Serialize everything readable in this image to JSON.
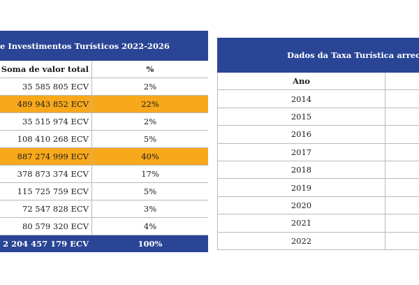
{
  "left_table": {
    "title": "e Investimentos Turísticos 2022-2026",
    "col_value": "Soma de valor total",
    "col_pct": "%",
    "rows": [
      {
        "value": "35 585 805 ECV",
        "pct": "2%"
      },
      {
        "value": "489 943 852 ECV",
        "pct": "22%"
      },
      {
        "value": "35 515 974 ECV",
        "pct": "2%"
      },
      {
        "value": "108 410 268 ECV",
        "pct": "5%"
      },
      {
        "value": "887 274 999 ECV",
        "pct": "40%"
      },
      {
        "value": "378 873 374 ECV",
        "pct": "17%"
      },
      {
        "value": "115 725 759 ECV",
        "pct": "5%"
      },
      {
        "value": "72 547 828 ECV",
        "pct": "3%"
      },
      {
        "value": "80 579 320 ECV",
        "pct": "4%"
      }
    ],
    "total": {
      "value": "2 204 457 179 ECV",
      "pct": "100%"
    },
    "highlight_color": "#f7a81b",
    "header_color": "#2a4596"
  },
  "right_table": {
    "title": "Dados da Taxa Turística arreca",
    "col_year": "Ano",
    "years": [
      "2014",
      "2015",
      "2016",
      "2017",
      "2018",
      "2019",
      "2020",
      "2021",
      "2022"
    ]
  }
}
